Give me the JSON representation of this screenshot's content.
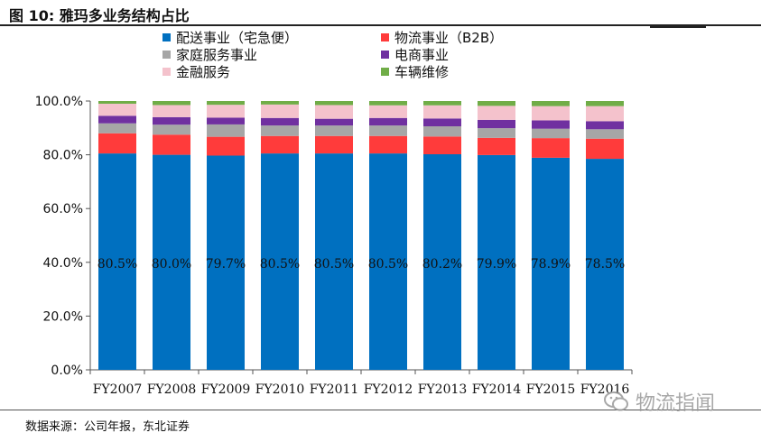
{
  "figure": {
    "title": "图 10:  雅玛多业务结构占比",
    "source": "数据来源：公司年报，东北证券",
    "watermark": "物流指闻"
  },
  "chart_data": {
    "type": "stacked_bar_100",
    "title": "",
    "xlabel": "",
    "ylabel": "",
    "ylim": [
      0,
      100
    ],
    "yticks": [
      "0.0%",
      "20.0%",
      "40.0%",
      "60.0%",
      "80.0%",
      "100.0%"
    ],
    "categories": [
      "FY2007",
      "FY2008",
      "FY2009",
      "FY2010",
      "FY2011",
      "FY2012",
      "FY2013",
      "FY2014",
      "FY2015",
      "FY2016"
    ],
    "data_labels": [
      "80.5%",
      "80.0%",
      "79.7%",
      "80.5%",
      "80.5%",
      "80.5%",
      "80.2%",
      "79.9%",
      "78.9%",
      "78.5%"
    ],
    "series": [
      {
        "name": "配送事业（宅急便）",
        "color": "#0070c0",
        "values": [
          80.5,
          80.0,
          79.7,
          80.5,
          80.5,
          80.5,
          80.2,
          79.9,
          78.9,
          78.5
        ]
      },
      {
        "name": "物流事业（B2B）",
        "color": "#ff3b3b",
        "values": [
          7.5,
          7.5,
          7.0,
          6.5,
          6.5,
          6.5,
          6.6,
          6.4,
          7.3,
          7.5
        ]
      },
      {
        "name": "家庭服务事业",
        "color": "#a6a6a6",
        "values": [
          3.7,
          3.7,
          4.6,
          3.9,
          3.9,
          3.9,
          3.8,
          3.6,
          3.5,
          3.5
        ]
      },
      {
        "name": "电商事业",
        "color": "#7030a0",
        "values": [
          2.8,
          2.8,
          2.5,
          2.8,
          2.5,
          2.8,
          2.9,
          3.1,
          3.1,
          3.0
        ]
      },
      {
        "name": "金融服务",
        "color": "#f4c2cc",
        "values": [
          4.5,
          4.5,
          4.8,
          5.0,
          5.1,
          4.7,
          4.9,
          5.2,
          5.3,
          5.6
        ]
      },
      {
        "name": "车辆维修",
        "color": "#70ad47",
        "values": [
          1.0,
          1.5,
          1.4,
          1.3,
          1.5,
          1.6,
          1.6,
          1.8,
          1.9,
          1.9
        ]
      }
    ],
    "legend": {
      "placement": "top",
      "columns": 2
    }
  }
}
